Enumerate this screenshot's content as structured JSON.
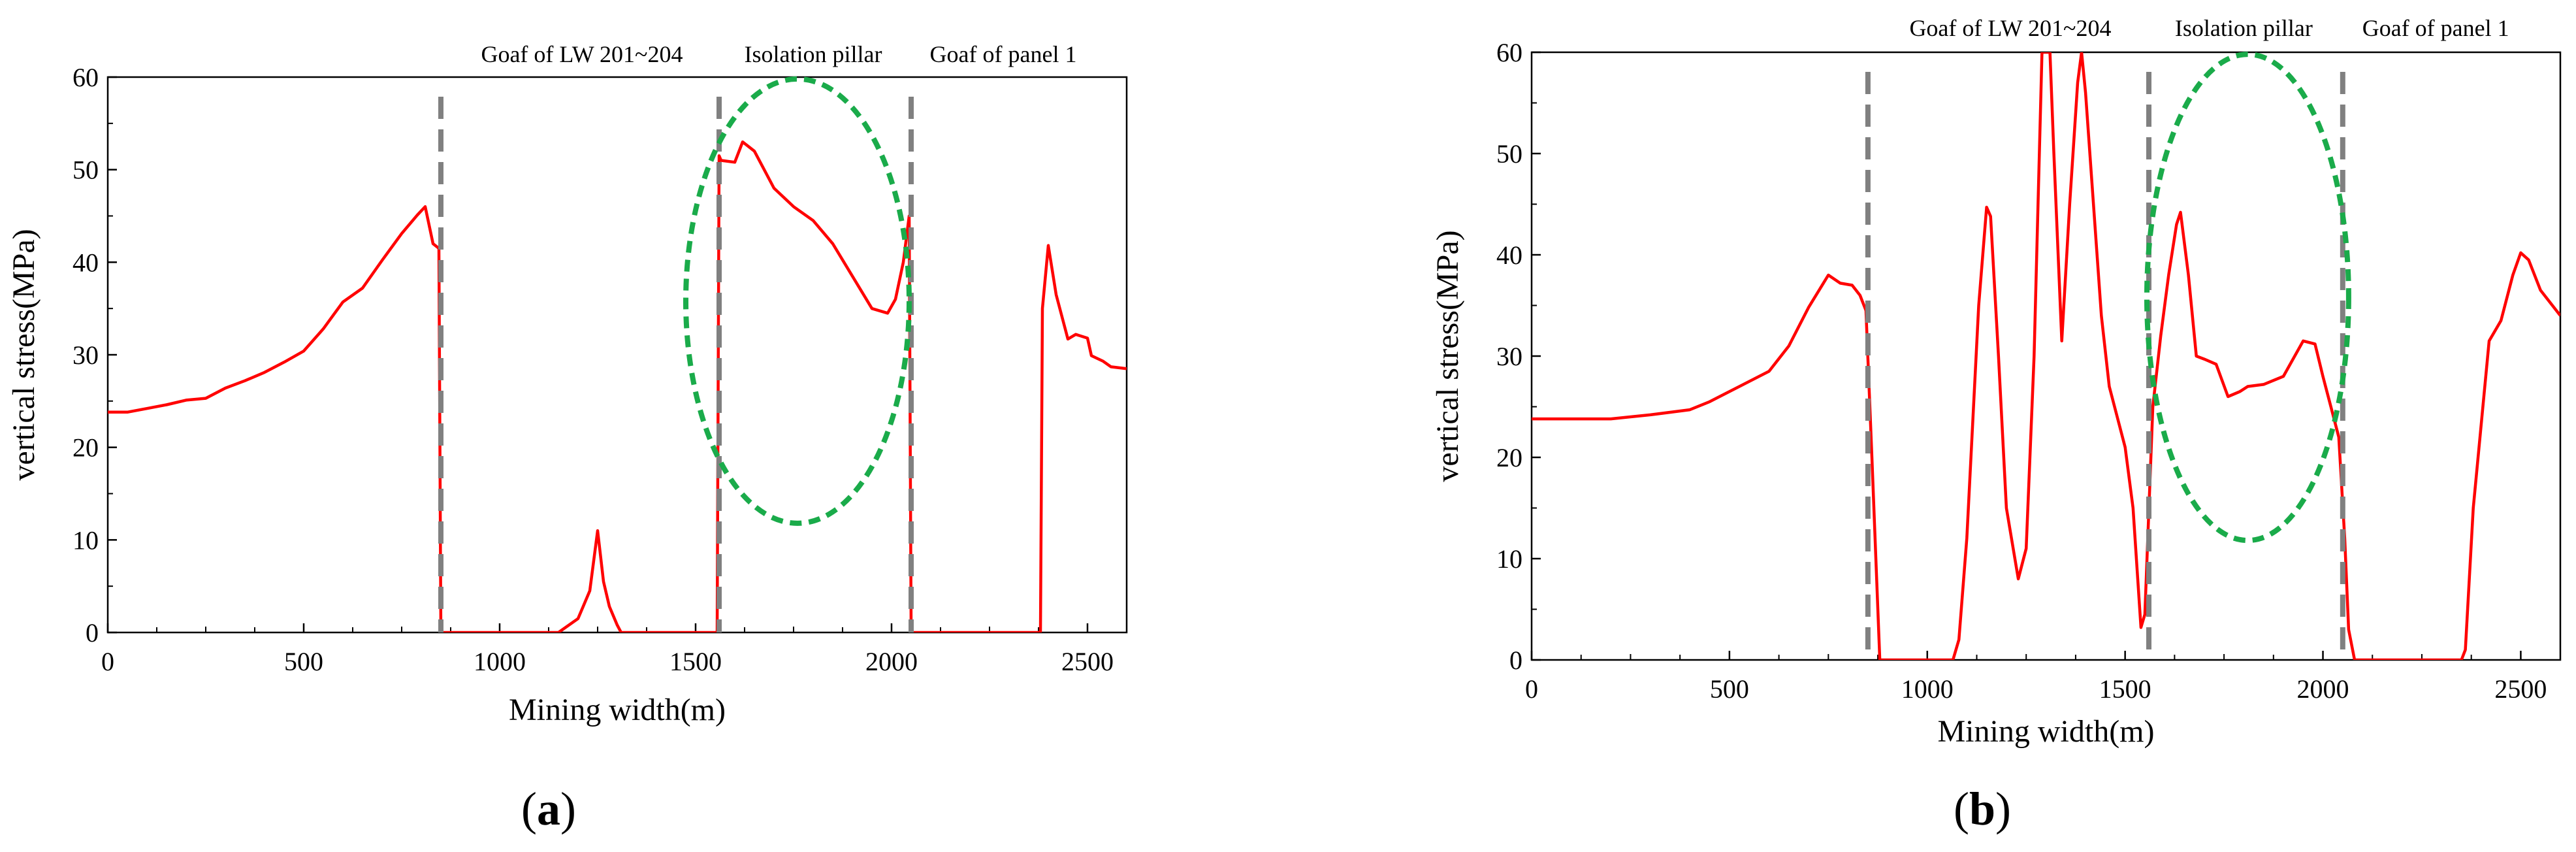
{
  "colors": {
    "curve": "#ff0000",
    "divider": "#808080",
    "ellipse": "#1aab4a",
    "axis": "#000000"
  },
  "chart_data": [
    {
      "type": "line",
      "panel_label": "(a)",
      "xlabel": "Mining width(m)",
      "ylabel": "vertical stress(MPa)",
      "xlim": [
        0,
        2600
      ],
      "ylim": [
        0,
        60
      ],
      "xticks": [
        0,
        500,
        1000,
        1500,
        2000,
        2500
      ],
      "yticks": [
        0,
        10,
        20,
        30,
        40,
        50,
        60
      ],
      "region_labels": [
        {
          "text": "Goaf of LW 201~204",
          "x": 1210
        },
        {
          "text": "Isolation pillar",
          "x": 1800
        },
        {
          "text": "Goaf of panel 1",
          "x": 2285
        }
      ],
      "dividers_x": [
        850,
        1560,
        2050
      ],
      "ellipse": {
        "cx": 1760,
        "cy": 35.8,
        "rx": 285,
        "ry": 24
      },
      "series": [
        {
          "name": "vertical stress",
          "x": [
            0,
            50,
            100,
            150,
            200,
            250,
            300,
            350,
            400,
            450,
            500,
            550,
            600,
            650,
            700,
            750,
            790,
            810,
            830,
            845,
            850,
            855,
            1000,
            1150,
            1200,
            1230,
            1250,
            1265,
            1280,
            1300,
            1310,
            1330,
            1500,
            1555,
            1560,
            1565,
            1600,
            1620,
            1650,
            1700,
            1750,
            1800,
            1850,
            1900,
            1950,
            1990,
            2010,
            2030,
            2045,
            2050,
            2055,
            2300,
            2380,
            2385,
            2400,
            2420,
            2450,
            2470,
            2500,
            2510,
            2540,
            2560,
            2600
          ],
          "y": [
            23.8,
            23.8,
            24.2,
            24.6,
            25.1,
            25.3,
            26.4,
            27.2,
            28.1,
            29.2,
            30.4,
            32.8,
            35.7,
            37.2,
            40.2,
            43.1,
            45.1,
            46,
            42,
            41.5,
            0,
            0,
            0,
            0,
            1.5,
            4.5,
            11,
            5.5,
            2.8,
            0.8,
            0,
            0,
            0,
            0,
            51.5,
            51,
            50.8,
            53,
            52,
            48,
            46,
            44.5,
            42,
            38.5,
            35,
            34.5,
            36,
            40,
            45,
            0,
            0,
            0,
            0,
            35,
            41.8,
            36.5,
            31.7,
            32.2,
            31.8,
            29.9,
            29.3,
            28.7,
            28.5
          ]
        }
      ]
    },
    {
      "type": "line",
      "panel_label": "(b)",
      "xlabel": "Mining width(m)",
      "ylabel": "vertical stress(MPa)",
      "xlim": [
        0,
        2600
      ],
      "ylim": [
        0,
        60
      ],
      "xticks": [
        0,
        500,
        1000,
        1500,
        2000,
        2500
      ],
      "yticks": [
        0,
        10,
        20,
        30,
        40,
        50,
        60
      ],
      "region_labels": [
        {
          "text": "Goaf of LW 201~204",
          "x": 1210
        },
        {
          "text": "Isolation pillar",
          "x": 1800
        },
        {
          "text": "Goaf of panel 1",
          "x": 2285
        }
      ],
      "dividers_x": [
        850,
        1560,
        2050
      ],
      "ellipse": {
        "cx": 1810,
        "cy": 35.8,
        "rx": 255,
        "ry": 24
      },
      "series": [
        {
          "name": "vertical stress",
          "x": [
            0,
            100,
            200,
            250,
            300,
            400,
            450,
            500,
            600,
            650,
            700,
            750,
            780,
            810,
            830,
            845,
            860,
            880,
            1050,
            1065,
            1080,
            1100,
            1130,
            1150,
            1160,
            1180,
            1200,
            1230,
            1250,
            1270,
            1290,
            1300,
            1310,
            1320,
            1340,
            1360,
            1380,
            1390,
            1400,
            1420,
            1440,
            1460,
            1500,
            1520,
            1540,
            1550,
            1570,
            1590,
            1610,
            1630,
            1640,
            1660,
            1680,
            1700,
            1730,
            1760,
            1790,
            1810,
            1850,
            1900,
            1950,
            1980,
            2000,
            2020,
            2040,
            2055,
            2065,
            2080,
            2100,
            2350,
            2360,
            2380,
            2420,
            2450,
            2480,
            2500,
            2520,
            2550,
            2600
          ],
          "y": [
            23.8,
            23.8,
            23.8,
            24,
            24.2,
            24.7,
            25.5,
            26.5,
            28.5,
            31,
            34.8,
            38,
            37.2,
            37,
            36,
            34.5,
            20,
            0,
            0,
            0,
            2,
            12,
            35,
            44.7,
            43.8,
            30,
            15,
            8,
            11,
            30,
            60,
            60,
            60,
            50,
            31.5,
            45,
            57,
            60,
            56,
            45,
            34,
            27,
            21,
            15,
            3.2,
            4.5,
            25,
            32,
            38,
            43,
            44.2,
            38,
            30,
            29.7,
            29.2,
            26,
            26.5,
            27,
            27.2,
            28,
            31.5,
            31.2,
            28,
            25,
            22,
            12,
            3,
            0,
            0,
            0,
            1,
            15,
            31.5,
            33.5,
            38,
            40.2,
            39.5,
            36.5,
            34
          ]
        }
      ]
    }
  ]
}
